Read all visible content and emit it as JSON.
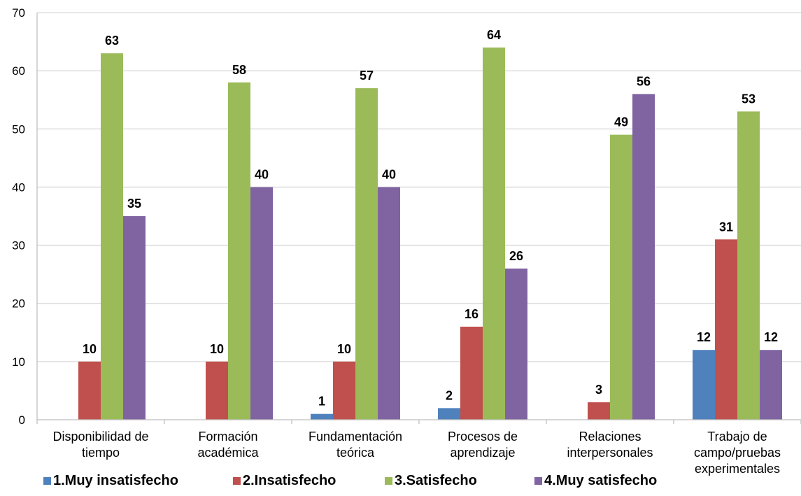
{
  "chart_data": {
    "type": "bar",
    "categories": [
      [
        "Disponibilidad de",
        "tiempo"
      ],
      [
        "Formación",
        "académica"
      ],
      [
        "Fundamentación",
        "teórica"
      ],
      [
        "Procesos de",
        "aprendizaje"
      ],
      [
        "Relaciones",
        "interpersonales"
      ],
      [
        "Trabajo de",
        "campo/pruebas",
        "experimentales"
      ]
    ],
    "series": [
      {
        "name": "1.Muy insatisfecho",
        "color": "#4F81BD",
        "values": [
          0,
          0,
          1,
          2,
          0,
          12
        ]
      },
      {
        "name": "2.Insatisfecho",
        "color": "#C0504D",
        "values": [
          10,
          10,
          10,
          16,
          3,
          31
        ]
      },
      {
        "name": "3.Satisfecho",
        "color": "#9BBB59",
        "values": [
          63,
          58,
          57,
          64,
          49,
          53
        ]
      },
      {
        "name": "4.Muy satisfecho",
        "color": "#8064A2",
        "values": [
          35,
          40,
          40,
          26,
          56,
          12
        ]
      }
    ],
    "ylim": [
      0,
      70
    ],
    "yticks": [
      0,
      10,
      20,
      30,
      40,
      50,
      60,
      70
    ],
    "grid": true,
    "legend_position": "bottom-left",
    "show_zero_labels": false
  }
}
